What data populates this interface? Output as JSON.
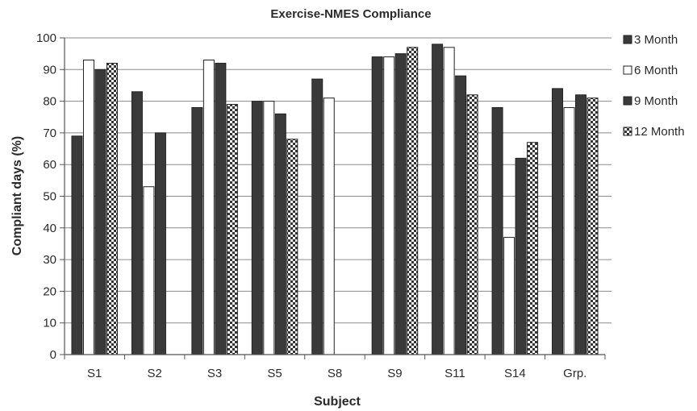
{
  "chart_data": {
    "type": "bar",
    "title": "Exercise-NMES Compliance",
    "xlabel": "Subject",
    "ylabel": "Compliant days (%)",
    "ylim": [
      0,
      100
    ],
    "yticks": [
      "0",
      "10",
      "20",
      "30",
      "40",
      "50",
      "60",
      "70",
      "80",
      "90",
      "100"
    ],
    "categories": [
      "S1",
      "S2",
      "S3",
      "S5",
      "S8",
      "S9",
      "S11",
      "S14",
      "Grp."
    ],
    "grid": true,
    "legend_position": "right",
    "series": [
      {
        "name": "3 Month",
        "values": [
          69,
          83,
          78,
          80,
          87,
          94,
          98,
          78,
          84
        ],
        "color": "#3a3a3a",
        "pattern": "solid"
      },
      {
        "name": "6 Month",
        "values": [
          93,
          53,
          93,
          80,
          81,
          94,
          97,
          37,
          78
        ],
        "color": "#ffffff",
        "pattern": "outline"
      },
      {
        "name": "9 Month",
        "values": [
          90,
          70,
          92,
          76,
          0,
          95,
          88,
          62,
          82
        ],
        "color": "#3a3a3a",
        "pattern": "solid"
      },
      {
        "name": "12 Month",
        "values": [
          92,
          0,
          79,
          68,
          0,
          97,
          82,
          67,
          81
        ],
        "color": "#3a3a3a",
        "pattern": "checker"
      }
    ]
  }
}
